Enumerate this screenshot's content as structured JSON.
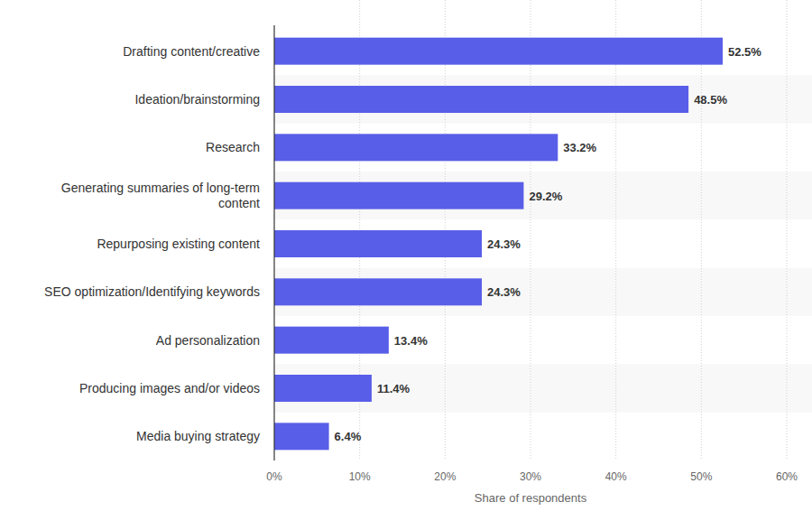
{
  "chart_data": {
    "type": "bar",
    "orientation": "horizontal",
    "categories": [
      "Drafting content/creative",
      "Ideation/brainstorming",
      "Research",
      "Generating summaries of long-term content",
      "Repurposing existing content",
      "SEO optimization/Identifying keywords",
      "Ad personalization",
      "Producing images and/or videos",
      "Media buying strategy"
    ],
    "values": [
      52.5,
      48.5,
      33.2,
      29.2,
      24.3,
      24.3,
      13.4,
      11.4,
      6.4
    ],
    "value_labels": [
      "52.5%",
      "48.5%",
      "33.2%",
      "29.2%",
      "24.3%",
      "24.3%",
      "13.4%",
      "11.4%",
      "6.4%"
    ],
    "color": "#595ee8",
    "x_label": "Share of respondents",
    "xlim": [
      0,
      60
    ],
    "xticks": [
      {
        "value": 0,
        "label": "0%"
      },
      {
        "value": 10,
        "label": "10%"
      },
      {
        "value": 20,
        "label": "20%"
      },
      {
        "value": 30,
        "label": "30%"
      },
      {
        "value": 40,
        "label": "40%"
      },
      {
        "value": 50,
        "label": "50%"
      },
      {
        "value": 60,
        "label": "60%"
      }
    ],
    "grid": true,
    "data_labels": true
  }
}
